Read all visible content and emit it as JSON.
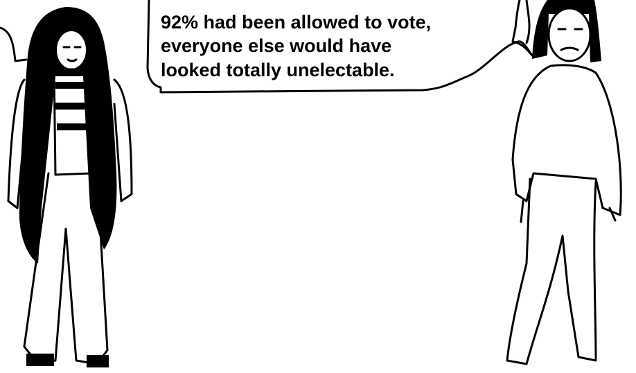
{
  "speech_bubble": {
    "lines": [
      "92% had been allowed to vote,",
      "everyone else would have",
      "looked totally unelectable."
    ]
  }
}
